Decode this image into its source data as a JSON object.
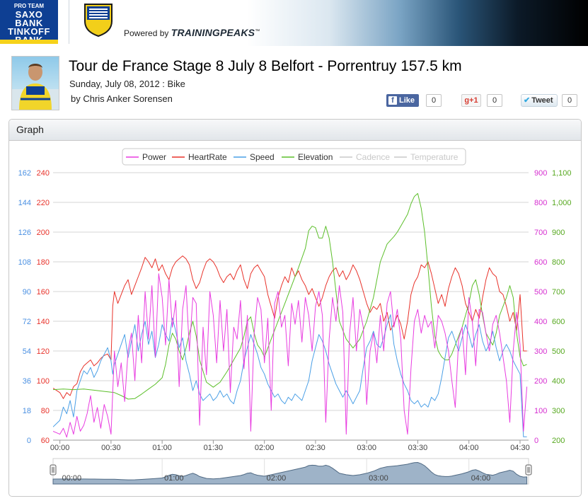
{
  "header": {
    "team_logo": {
      "top": "PRO TEAM",
      "lines": [
        "SAXO",
        "BANK",
        "TINKOFF",
        "BANK"
      ]
    },
    "powered_by": "Powered by",
    "brand": "TRAININGPEAKS"
  },
  "workout": {
    "title": "Tour de France Stage 8 July 8 Belfort - Porrentruy 157.5 km",
    "date_line": "Sunday, July 08, 2012 : Bike",
    "byline": "by Chris Anker Sorensen"
  },
  "social": {
    "facebook": {
      "label": "Like",
      "count": "0"
    },
    "gplus": {
      "label": "+1",
      "count": "0"
    },
    "twitter": {
      "label": "Tweet",
      "count": "0"
    }
  },
  "panel": {
    "title": "Graph"
  },
  "colors": {
    "power": "#e83ce0",
    "heartrate": "#e8322a",
    "speed": "#4a9fe6",
    "elevation": "#5cbf2a",
    "cadence": "#c8c8c8",
    "temperature": "#c8c8c8",
    "navigator_fill": "#9eb3c8",
    "navigator_line": "#506a84"
  },
  "chart_data": {
    "type": "line",
    "legend": {
      "placement": "top-center",
      "items": [
        {
          "name": "Power",
          "color": "#e83ce0",
          "active": true
        },
        {
          "name": "HeartRate",
          "color": "#e8322a",
          "active": true
        },
        {
          "name": "Speed",
          "color": "#4a9fe6",
          "active": true
        },
        {
          "name": "Elevation",
          "color": "#5cbf2a",
          "active": true
        },
        {
          "name": "Cadence",
          "color": "#c8c8c8",
          "active": false
        },
        {
          "name": "Temperature",
          "color": "#c8c8c8",
          "active": false
        }
      ]
    },
    "grid": true,
    "x_axis": {
      "unit_minutes": true,
      "range": [
        -4,
        275
      ],
      "ticks": [
        0,
        30,
        60,
        90,
        120,
        150,
        180,
        210,
        240,
        270
      ],
      "tick_labels": [
        "00:00",
        "00:30",
        "01:00",
        "01:30",
        "02:00",
        "02:30",
        "03:00",
        "03:30",
        "04:00",
        "04:30"
      ]
    },
    "axes": {
      "speed": {
        "range": [
          0,
          162
        ],
        "ticks": [
          "0",
          "18",
          "36",
          "54",
          "72",
          "90",
          "108",
          "126",
          "144",
          "162"
        ],
        "color": "#4a90e2"
      },
      "heartrate": {
        "range": [
          60,
          240
        ],
        "ticks": [
          "60",
          "80",
          "100",
          "120",
          "140",
          "160",
          "180",
          "200",
          "220",
          "240"
        ],
        "color": "#e8322a"
      },
      "power": {
        "range": [
          0,
          900
        ],
        "ticks": [
          "0",
          "100",
          "200",
          "300",
          "400",
          "500",
          "600",
          "700",
          "800",
          "900"
        ],
        "color": "#d62fd0"
      },
      "elevation": {
        "range": [
          200,
          1100
        ],
        "ticks": [
          "200",
          "300",
          "400",
          "500",
          "600",
          "700",
          "800",
          "900",
          "1,000",
          "1,100"
        ],
        "color": "#56a81f"
      }
    },
    "series": [
      {
        "name": "HeartRate",
        "axis": "heartrate",
        "x": [
          -4,
          0,
          2,
          4,
          6,
          8,
          10,
          12,
          14,
          16,
          18,
          20,
          22,
          24,
          26,
          28,
          30,
          31,
          32,
          34,
          36,
          38,
          40,
          42,
          44,
          46,
          48,
          50,
          52,
          54,
          56,
          58,
          60,
          62,
          64,
          66,
          68,
          70,
          72,
          74,
          76,
          78,
          80,
          82,
          84,
          86,
          88,
          90,
          92,
          94,
          96,
          98,
          100,
          102,
          104,
          106,
          108,
          110,
          112,
          114,
          116,
          118,
          120,
          122,
          124,
          126,
          128,
          130,
          132,
          134,
          136,
          138,
          140,
          142,
          144,
          146,
          148,
          150,
          152,
          154,
          156,
          158,
          160,
          162,
          164,
          166,
          168,
          170,
          172,
          174,
          176,
          178,
          180,
          182,
          184,
          186,
          188,
          190,
          192,
          194,
          196,
          198,
          200,
          202,
          204,
          206,
          208,
          210,
          212,
          214,
          216,
          218,
          220,
          222,
          224,
          226,
          228,
          230,
          232,
          234,
          236,
          238,
          240,
          242,
          244,
          246,
          248,
          250,
          252,
          254,
          256,
          258,
          260,
          262,
          264,
          266,
          268,
          270,
          272,
          274
        ],
        "y": [
          95,
          92,
          88,
          92,
          90,
          96,
          98,
          106,
          110,
          112,
          114,
          110,
          112,
          115,
          117,
          118,
          114,
          150,
          160,
          152,
          158,
          164,
          168,
          158,
          164,
          170,
          176,
          183,
          180,
          176,
          182,
          174,
          178,
          172,
          168,
          176,
          180,
          182,
          184,
          182,
          178,
          168,
          162,
          166,
          174,
          180,
          182,
          180,
          176,
          170,
          166,
          170,
          172,
          168,
          174,
          178,
          168,
          162,
          172,
          176,
          178,
          174,
          170,
          158,
          150,
          142,
          156,
          164,
          170,
          166,
          176,
          170,
          174,
          168,
          164,
          158,
          162,
          156,
          150,
          156,
          164,
          170,
          174,
          176,
          170,
          174,
          168,
          172,
          178,
          174,
          168,
          160,
          152,
          146,
          150,
          148,
          152,
          140,
          146,
          134,
          138,
          144,
          138,
          128,
          140,
          158,
          166,
          170,
          178,
          176,
          180,
          172,
          162,
          152,
          158,
          150,
          162,
          170,
          176,
          172,
          164,
          152,
          146,
          140,
          148,
          142,
          156,
          168,
          176,
          172,
          170,
          160,
          158,
          150,
          140,
          146,
          134,
          158,
          120,
          120
        ]
      },
      {
        "name": "Elevation",
        "axis": "elevation",
        "x": [
          -4,
          2,
          8,
          14,
          20,
          26,
          32,
          36,
          40,
          44,
          48,
          52,
          56,
          60,
          62,
          64,
          66,
          68,
          70,
          72,
          74,
          76,
          78,
          80,
          82,
          86,
          90,
          94,
          98,
          102,
          106,
          108,
          110,
          112,
          114,
          116,
          118,
          120,
          124,
          128,
          132,
          136,
          140,
          144,
          146,
          148,
          150,
          152,
          154,
          156,
          158,
          160,
          162,
          164,
          168,
          172,
          176,
          180,
          184,
          188,
          192,
          196,
          198,
          200,
          202,
          204,
          206,
          208,
          210,
          212,
          214,
          216,
          218,
          220,
          222,
          224,
          226,
          228,
          230,
          232,
          234,
          236,
          238,
          240,
          242,
          244,
          246,
          248,
          250,
          252,
          254,
          256,
          258,
          260,
          262,
          264,
          266,
          268,
          270,
          272,
          274
        ],
        "y": [
          370,
          372,
          370,
          372,
          368,
          364,
          360,
          350,
          338,
          340,
          355,
          372,
          388,
          410,
          455,
          520,
          560,
          540,
          500,
          470,
          510,
          560,
          600,
          550,
          470,
          395,
          378,
          395,
          430,
          470,
          510,
          550,
          600,
          615,
          560,
          520,
          505,
          480,
          540,
          600,
          660,
          720,
          780,
          845,
          905,
          920,
          915,
          880,
          880,
          920,
          880,
          800,
          700,
          600,
          540,
          510,
          540,
          600,
          680,
          800,
          860,
          885,
          900,
          920,
          940,
          960,
          995,
          1020,
          1030,
          980,
          900,
          780,
          650,
          550,
          500,
          480,
          470,
          470,
          490,
          520,
          550,
          580,
          620,
          660,
          720,
          740,
          690,
          620,
          560,
          540,
          520,
          560,
          620,
          650,
          680,
          720,
          680,
          560,
          480,
          450,
          455
        ]
      },
      {
        "name": "Speed",
        "axis": "speed",
        "x": [
          -4,
          0,
          2,
          4,
          6,
          8,
          10,
          12,
          14,
          16,
          18,
          20,
          22,
          24,
          26,
          28,
          30,
          31,
          32,
          34,
          36,
          38,
          40,
          42,
          44,
          46,
          48,
          50,
          52,
          54,
          56,
          58,
          60,
          62,
          64,
          66,
          68,
          70,
          72,
          74,
          76,
          78,
          80,
          82,
          84,
          86,
          88,
          90,
          92,
          94,
          96,
          98,
          100,
          102,
          104,
          106,
          108,
          110,
          112,
          114,
          116,
          118,
          120,
          122,
          124,
          126,
          128,
          130,
          132,
          134,
          136,
          138,
          140,
          142,
          144,
          146,
          148,
          150,
          152,
          154,
          156,
          158,
          160,
          162,
          164,
          166,
          168,
          170,
          172,
          174,
          176,
          178,
          180,
          182,
          184,
          186,
          188,
          190,
          192,
          194,
          196,
          198,
          200,
          202,
          204,
          206,
          208,
          210,
          212,
          214,
          216,
          218,
          220,
          222,
          224,
          226,
          228,
          230,
          232,
          234,
          236,
          238,
          240,
          242,
          244,
          246,
          248,
          250,
          252,
          254,
          256,
          258,
          260,
          262,
          264,
          266,
          268,
          270,
          272,
          274
        ],
        "y": [
          8,
          12,
          20,
          16,
          24,
          14,
          30,
          36,
          42,
          40,
          44,
          38,
          42,
          48,
          52,
          56,
          48,
          40,
          46,
          52,
          58,
          64,
          50,
          60,
          70,
          54,
          64,
          72,
          58,
          66,
          50,
          58,
          70,
          64,
          60,
          74,
          66,
          56,
          62,
          48,
          40,
          30,
          36,
          28,
          24,
          26,
          28,
          24,
          26,
          30,
          26,
          28,
          24,
          22,
          30,
          36,
          48,
          56,
          64,
          58,
          52,
          44,
          40,
          34,
          30,
          26,
          28,
          24,
          22,
          26,
          24,
          28,
          26,
          24,
          30,
          36,
          48,
          56,
          64,
          60,
          54,
          46,
          40,
          34,
          30,
          26,
          30,
          26,
          22,
          26,
          30,
          44,
          56,
          60,
          66,
          58,
          56,
          62,
          70,
          76,
          58,
          48,
          40,
          34,
          30,
          24,
          22,
          24,
          20,
          22,
          20,
          26,
          24,
          28,
          38,
          50,
          62,
          66,
          60,
          54,
          62,
          70,
          64,
          56,
          64,
          70,
          60,
          54,
          58,
          66,
          56,
          48,
          54,
          58,
          54,
          48,
          44,
          40,
          2,
          2
        ]
      },
      {
        "name": "Power",
        "axis": "power",
        "x": [
          -4,
          0,
          2,
          4,
          6,
          8,
          10,
          12,
          14,
          16,
          18,
          20,
          22,
          24,
          26,
          28,
          30,
          31,
          32,
          34,
          36,
          38,
          40,
          42,
          44,
          46,
          48,
          50,
          52,
          54,
          56,
          58,
          60,
          62,
          64,
          66,
          68,
          70,
          72,
          74,
          76,
          78,
          80,
          82,
          84,
          86,
          88,
          90,
          92,
          94,
          96,
          98,
          100,
          102,
          104,
          106,
          108,
          110,
          112,
          114,
          116,
          118,
          120,
          122,
          124,
          126,
          128,
          130,
          132,
          134,
          136,
          138,
          140,
          142,
          144,
          146,
          148,
          150,
          152,
          154,
          156,
          158,
          160,
          162,
          164,
          166,
          168,
          170,
          172,
          174,
          176,
          178,
          180,
          182,
          184,
          186,
          188,
          190,
          192,
          194,
          196,
          198,
          200,
          202,
          204,
          206,
          208,
          210,
          212,
          214,
          216,
          218,
          220,
          222,
          224,
          226,
          228,
          230,
          232,
          234,
          236,
          238,
          240,
          242,
          244,
          246,
          248,
          250,
          252,
          254,
          256,
          258,
          260,
          262,
          264,
          266,
          268,
          270,
          272,
          274
        ],
        "y": [
          30,
          20,
          40,
          10,
          60,
          20,
          80,
          30,
          50,
          90,
          150,
          60,
          110,
          40,
          120,
          80,
          20,
          160,
          300,
          180,
          260,
          130,
          300,
          360,
          200,
          420,
          260,
          500,
          340,
          520,
          280,
          560,
          480,
          320,
          540,
          380,
          470,
          180,
          440,
          520,
          300,
          480,
          460,
          50,
          380,
          220,
          500,
          420,
          260,
          470,
          300,
          440,
          160,
          380,
          340,
          470,
          240,
          420,
          30,
          360,
          480,
          440,
          260,
          410,
          100,
          460,
          500,
          380,
          420,
          250,
          460,
          390,
          470,
          330,
          480,
          420,
          300,
          450,
          500,
          420,
          60,
          340,
          480,
          400,
          520,
          430,
          20,
          360,
          480,
          300,
          440,
          380,
          120,
          300,
          360,
          260,
          420,
          300,
          460,
          500,
          380,
          440,
          340,
          100,
          20,
          240,
          400,
          440,
          360,
          420,
          380,
          400,
          310,
          420,
          400,
          360,
          300,
          200,
          110,
          340,
          380,
          220,
          480,
          400,
          250,
          440,
          430,
          360,
          300,
          390,
          420,
          360,
          280,
          200,
          60,
          300,
          430,
          320,
          30,
          180
        ]
      }
    ],
    "navigator": {
      "tick_labels": [
        "00:00",
        "01:00",
        "02:00",
        "03:00",
        "04:00"
      ]
    }
  }
}
